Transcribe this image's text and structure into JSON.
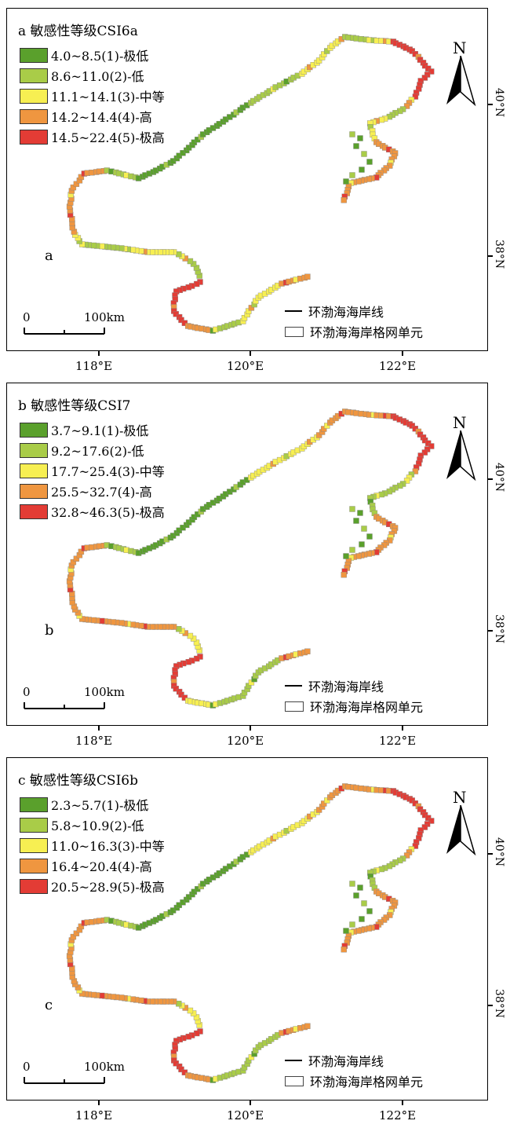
{
  "colors": {
    "level1": "#5aa02c",
    "level2": "#a9cc48",
    "level3": "#f7ef52",
    "level4": "#ef9640",
    "level5": "#e33c35"
  },
  "common": {
    "coastline_label": "环渤海海岸线",
    "grid_label": "环渤海海岸格网单元",
    "north": "N",
    "scale_zero": "0",
    "scale_end": "100km",
    "lat_40": "40°N",
    "lat_38": "38°N",
    "lon_118": "118°E",
    "lon_120": "120°E",
    "lon_122": "122°E"
  },
  "panels": [
    {
      "title": "a 敏感性等级CSI6a",
      "label": "a",
      "legend": [
        "4.0~8.5(1)-极低",
        "8.6~11.0(2)-低",
        "11.1~14.1(3)-中等",
        "14.2~14.4(4)-高",
        "14.5~22.4(5)-极高"
      ],
      "segment_levels": [
        2,
        2,
        3,
        3,
        3,
        2,
        3,
        5,
        5,
        5,
        5,
        4,
        2,
        3,
        3,
        4,
        4,
        4,
        4,
        4,
        2,
        1,
        1,
        1,
        1,
        1,
        1
      ]
    },
    {
      "title": "b 敏感性等级CSI7",
      "label": "b",
      "legend": [
        "3.7~9.1(1)-极低",
        "9.2~17.6(2)-低",
        "17.7~25.4(3)-中等",
        "25.5~32.7(4)-高",
        "32.8~46.3(5)-极高"
      ],
      "segment_levels": [
        3,
        3,
        3,
        4,
        4,
        4,
        4,
        5,
        5,
        5,
        5,
        3,
        2,
        2,
        2,
        4,
        4,
        4,
        4,
        4,
        2,
        1,
        1,
        1,
        1,
        1,
        1
      ]
    },
    {
      "title": "c 敏感性等级CSI6b",
      "label": "c",
      "legend": [
        "2.3~5.7(1)-极低",
        "5.8~10.9(2)-低",
        "11.0~16.3(3)-中等",
        "16.4~20.4(4)-高",
        "20.5~28.9(5)-极高"
      ],
      "segment_levels": [
        3,
        3,
        3,
        4,
        4,
        4,
        4,
        5,
        5,
        5,
        5,
        4,
        2,
        2,
        2,
        4,
        4,
        4,
        4,
        4,
        2,
        1,
        1,
        1,
        1,
        1,
        1
      ]
    }
  ]
}
